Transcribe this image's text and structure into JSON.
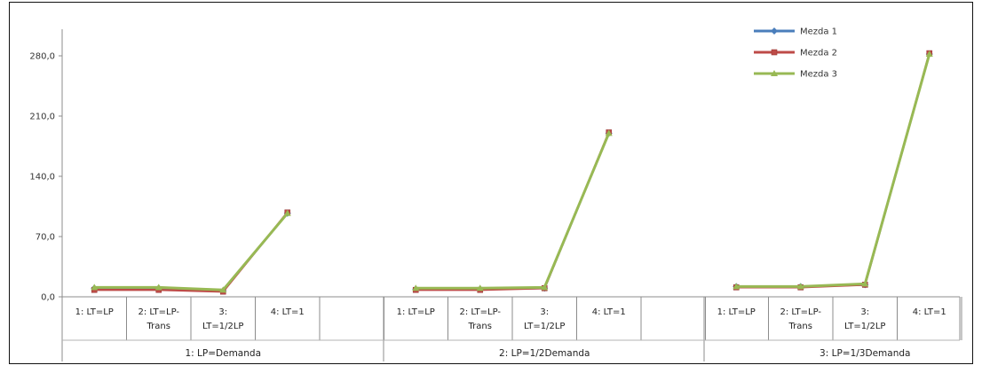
{
  "chart_data": {
    "type": "line",
    "title": "",
    "xlabel": "",
    "ylabel": "",
    "ylim": [
      0,
      280
    ],
    "y_ticks": [
      "0,0",
      "70,0",
      "140,0",
      "210,0",
      "280,0"
    ],
    "y_tick_values": [
      0,
      70,
      140,
      210,
      280
    ],
    "grid": false,
    "legend_position": "top-right",
    "groups": [
      {
        "label": "1:     LP=Demanda",
        "categories": [
          {
            "line1": "1: LT=LP",
            "line2": ""
          },
          {
            "line1": "2: LT=LP-",
            "line2": "Trans"
          },
          {
            "line1": "3:",
            "line2": "LT=1/2LP"
          },
          {
            "line1": "4: LT=1",
            "line2": ""
          }
        ]
      },
      {
        "label": "2: LP=1/2Demanda",
        "categories": [
          {
            "line1": "1: LT=LP",
            "line2": ""
          },
          {
            "line1": "2: LT=LP-",
            "line2": "Trans"
          },
          {
            "line1": "3:",
            "line2": "LT=1/2LP"
          },
          {
            "line1": "4: LT=1",
            "line2": ""
          }
        ]
      },
      {
        "label": "3: LP=1/3Demanda",
        "categories": [
          {
            "line1": "1: LT=LP",
            "line2": ""
          },
          {
            "line1": "2: LT=LP-",
            "line2": "Trans"
          },
          {
            "line1": "3:",
            "line2": "LT=1/2LP"
          },
          {
            "line1": "4: LT=1",
            "line2": ""
          }
        ]
      }
    ],
    "series": [
      {
        "name": "Mezda 1",
        "color": "#4a7ebb",
        "marker": "diamond",
        "values": [
          [
            10,
            10,
            7,
            97
          ],
          [
            9,
            9,
            10,
            190
          ],
          [
            12,
            12,
            14,
            282
          ]
        ]
      },
      {
        "name": "Mezda 2",
        "color": "#be4b48",
        "marker": "square",
        "values": [
          [
            8,
            8,
            6,
            98
          ],
          [
            8,
            8,
            10,
            191
          ],
          [
            11,
            11,
            14,
            283
          ]
        ]
      },
      {
        "name": "Mezda 3",
        "color": "#98b954",
        "marker": "triangle",
        "values": [
          [
            11,
            11,
            8,
            97
          ],
          [
            10,
            10,
            11,
            190
          ],
          [
            12,
            12,
            15,
            282
          ]
        ]
      }
    ]
  }
}
